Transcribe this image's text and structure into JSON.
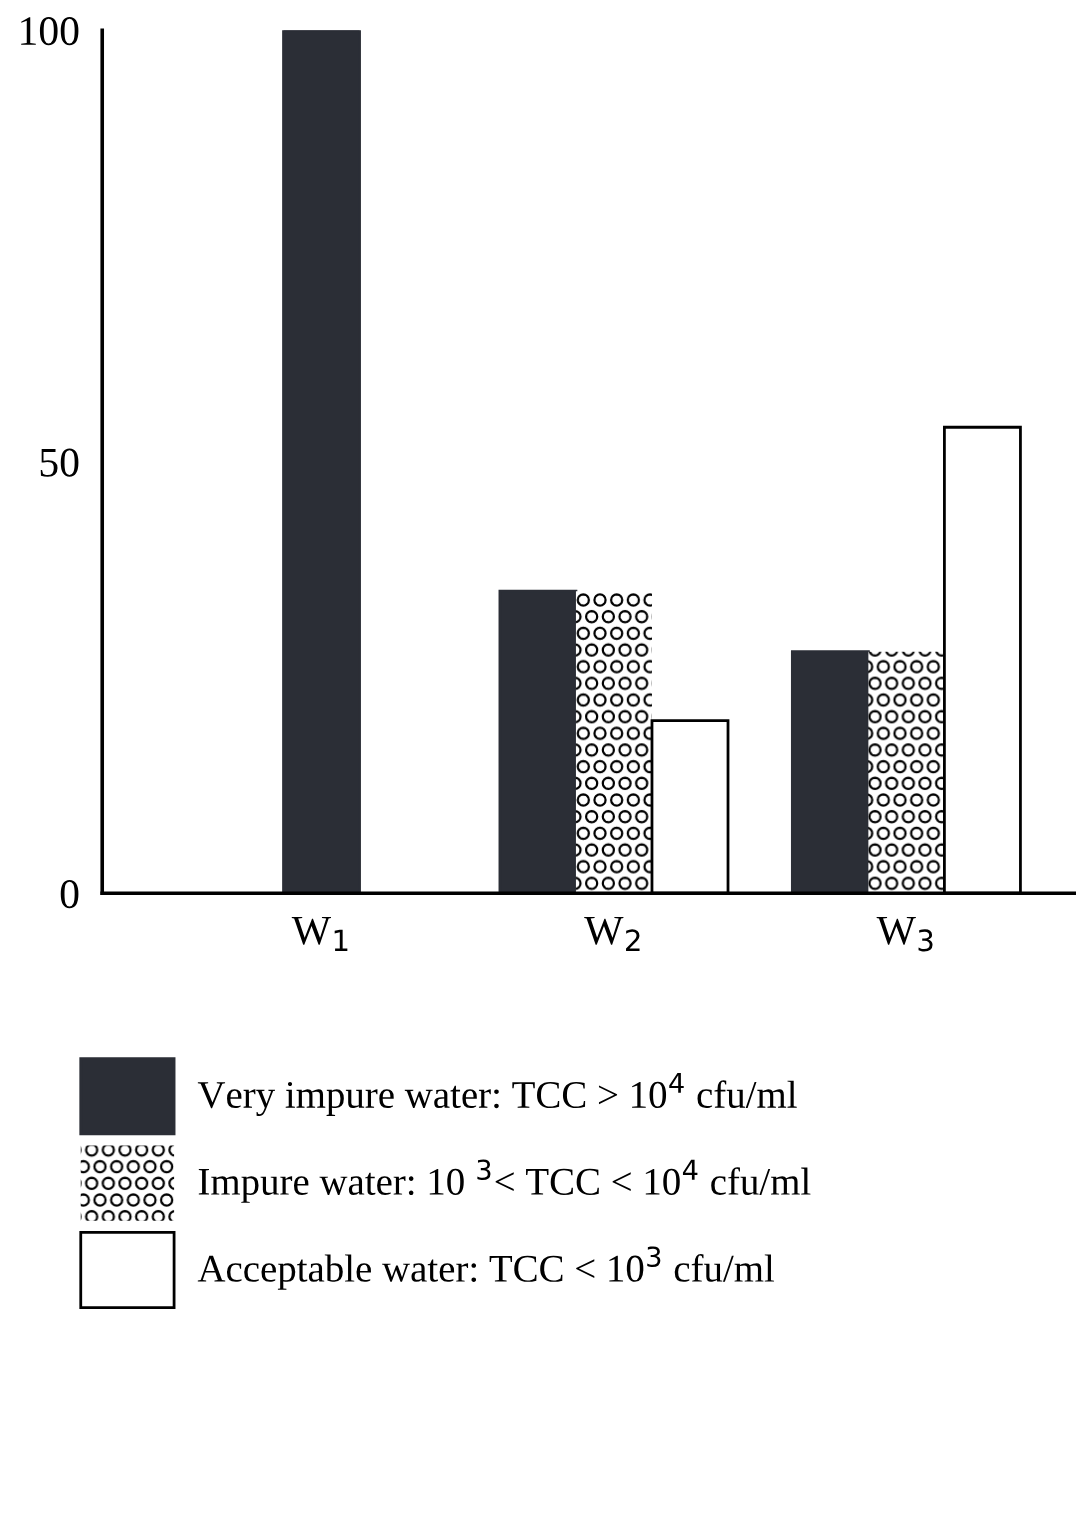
{
  "chart_data": {
    "type": "bar",
    "categories": [
      "W$_{1}$",
      "W$_{2}$",
      "W$_{3}$"
    ],
    "series": [
      {
        "name": "Very impure water: TCC > 10$^{4}$ cfu/ml",
        "color": "#2b2e36",
        "values": [
          100,
          35,
          28
        ]
      },
      {
        "name": "Impure water: 10 $^{3}$< TCC < 10$^{4}$ cfu/ml",
        "color": "#ffffff",
        "values": [
          null,
          35,
          28
        ]
      },
      {
        "name": "Acceptable water: TCC < 10$^{3}$ cfu/ml",
        "color": "#ffffff",
        "values": [
          null,
          20,
          54
        ]
      }
    ],
    "ylim": [
      0,
      100
    ],
    "yticks": [
      0,
      50,
      100
    ],
    "grid": false,
    "legend": "bottom"
  }
}
